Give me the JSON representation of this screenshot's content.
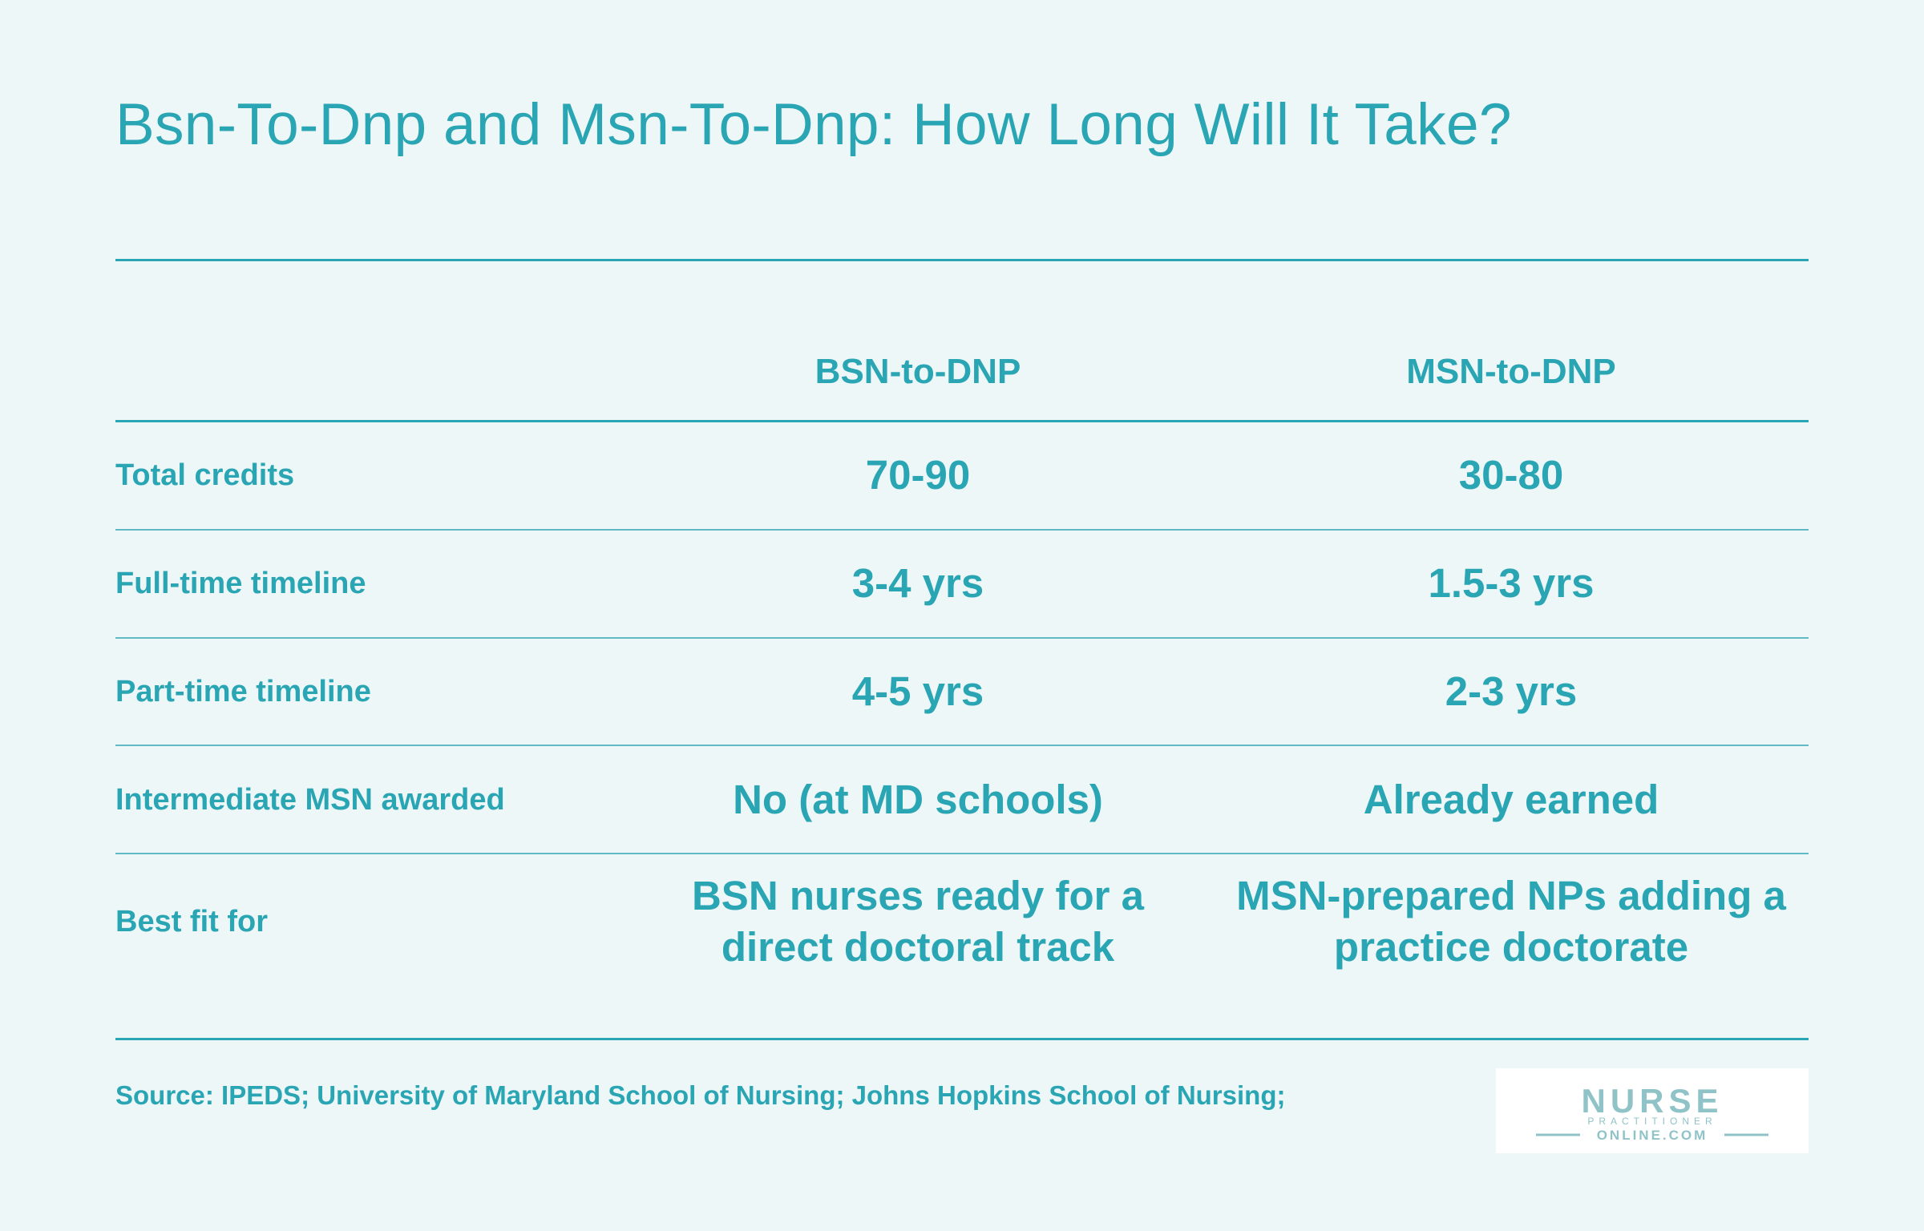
{
  "title": "Bsn-To-Dnp and Msn-To-Dnp: How Long Will It Take?",
  "table": {
    "columns": [
      "BSN-to-DNP",
      "MSN-to-DNP"
    ],
    "rows": [
      {
        "label": "Total credits",
        "values": [
          "70-90",
          "30-80"
        ]
      },
      {
        "label": "Full-time timeline",
        "values": [
          "3-4 yrs",
          "1.5-3 yrs"
        ]
      },
      {
        "label": "Part-time timeline",
        "values": [
          "4-5 yrs",
          "2-3 yrs"
        ]
      },
      {
        "label": "Intermediate MSN awarded",
        "values": [
          "No (at MD schools)",
          "Already earned"
        ]
      },
      {
        "label": "Best fit for",
        "values": [
          "BSN nurses ready for a direct doctoral track",
          "MSN-prepared NPs adding a practice doctorate"
        ]
      }
    ]
  },
  "source": "Source: IPEDS; University of Maryland School of Nursing; Johns Hopkins School of Nursing;",
  "logo": {
    "line1": "NURSE",
    "line2": "PRACTITIONER",
    "line3": "ONLINE.COM"
  },
  "colors": {
    "accent": "#2aa5b3",
    "background": "#eef7f8",
    "logo_text": "#8fc3c8"
  }
}
